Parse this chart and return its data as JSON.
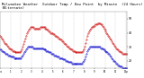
{
  "title": "Milwaukee Weather  Outdoor Temp / Dew Point  by Minute  (24 Hours) (Alternate)",
  "title_fontsize": 2.8,
  "background_color": "#ffffff",
  "plot_bg_color": "#ffffff",
  "grid_color": "#bbbbbb",
  "temp_color": "#cc0000",
  "dew_color": "#0000cc",
  "ylim": [
    15,
    55
  ],
  "yticks": [
    20,
    30,
    40,
    50
  ],
  "ytick_labels": [
    "20",
    "30",
    "40",
    "50"
  ],
  "temp_data": [
    38,
    37,
    36,
    35,
    34,
    33,
    32,
    32,
    31,
    30,
    29,
    29,
    28,
    28,
    27,
    27,
    27,
    26,
    26,
    26,
    26,
    26,
    26,
    26,
    27,
    28,
    30,
    32,
    34,
    36,
    38,
    40,
    41,
    42,
    43,
    44,
    44,
    44,
    44,
    43,
    43,
    43,
    43,
    43,
    43,
    43,
    44,
    44,
    44,
    44,
    44,
    44,
    43,
    43,
    42,
    42,
    41,
    41,
    40,
    40,
    40,
    39,
    39,
    38,
    38,
    37,
    37,
    36,
    36,
    35,
    35,
    34,
    34,
    33,
    32,
    32,
    31,
    30,
    30,
    29,
    29,
    28,
    28,
    27,
    27,
    27,
    26,
    26,
    26,
    26,
    26,
    26,
    26,
    26,
    26,
    27,
    28,
    30,
    33,
    35,
    38,
    40,
    41,
    42,
    43,
    44,
    44,
    45,
    45,
    46,
    46,
    46,
    47,
    47,
    47,
    46,
    46,
    45,
    44,
    43,
    42,
    41,
    40,
    39,
    38,
    37,
    36,
    35,
    34,
    33,
    32,
    31,
    30,
    29,
    28,
    28,
    27,
    27,
    26,
    26,
    25,
    25,
    25,
    25,
    25,
    25
  ],
  "dew_data": [
    28,
    28,
    27,
    27,
    26,
    26,
    25,
    25,
    25,
    24,
    24,
    24,
    23,
    23,
    23,
    23,
    22,
    22,
    22,
    22,
    22,
    22,
    22,
    22,
    22,
    23,
    24,
    25,
    26,
    27,
    28,
    29,
    30,
    30,
    30,
    30,
    30,
    30,
    29,
    29,
    29,
    29,
    29,
    29,
    29,
    29,
    29,
    29,
    29,
    29,
    28,
    28,
    28,
    27,
    27,
    27,
    26,
    26,
    26,
    25,
    25,
    25,
    24,
    24,
    24,
    23,
    23,
    23,
    22,
    22,
    22,
    22,
    21,
    21,
    21,
    20,
    20,
    20,
    19,
    19,
    19,
    19,
    18,
    18,
    18,
    18,
    18,
    18,
    18,
    18,
    18,
    18,
    18,
    18,
    18,
    19,
    20,
    21,
    23,
    25,
    27,
    28,
    29,
    30,
    30,
    30,
    30,
    30,
    30,
    30,
    30,
    30,
    30,
    30,
    30,
    29,
    29,
    29,
    28,
    28,
    27,
    27,
    26,
    26,
    25,
    25,
    24,
    23,
    22,
    21,
    20,
    20,
    19,
    18,
    18,
    17,
    17,
    16,
    16,
    16,
    15,
    15,
    15,
    15,
    15,
    15
  ],
  "xtick_positions": [
    0,
    12,
    24,
    36,
    48,
    60,
    72,
    84,
    96,
    108,
    120,
    132,
    144
  ],
  "xtick_labels": [
    "12a",
    "1",
    "2",
    "3",
    "4",
    "5",
    "6",
    "7",
    "8",
    "9",
    "10",
    "11",
    "12p"
  ],
  "marker_size": 0.6,
  "line_width": 0.4
}
